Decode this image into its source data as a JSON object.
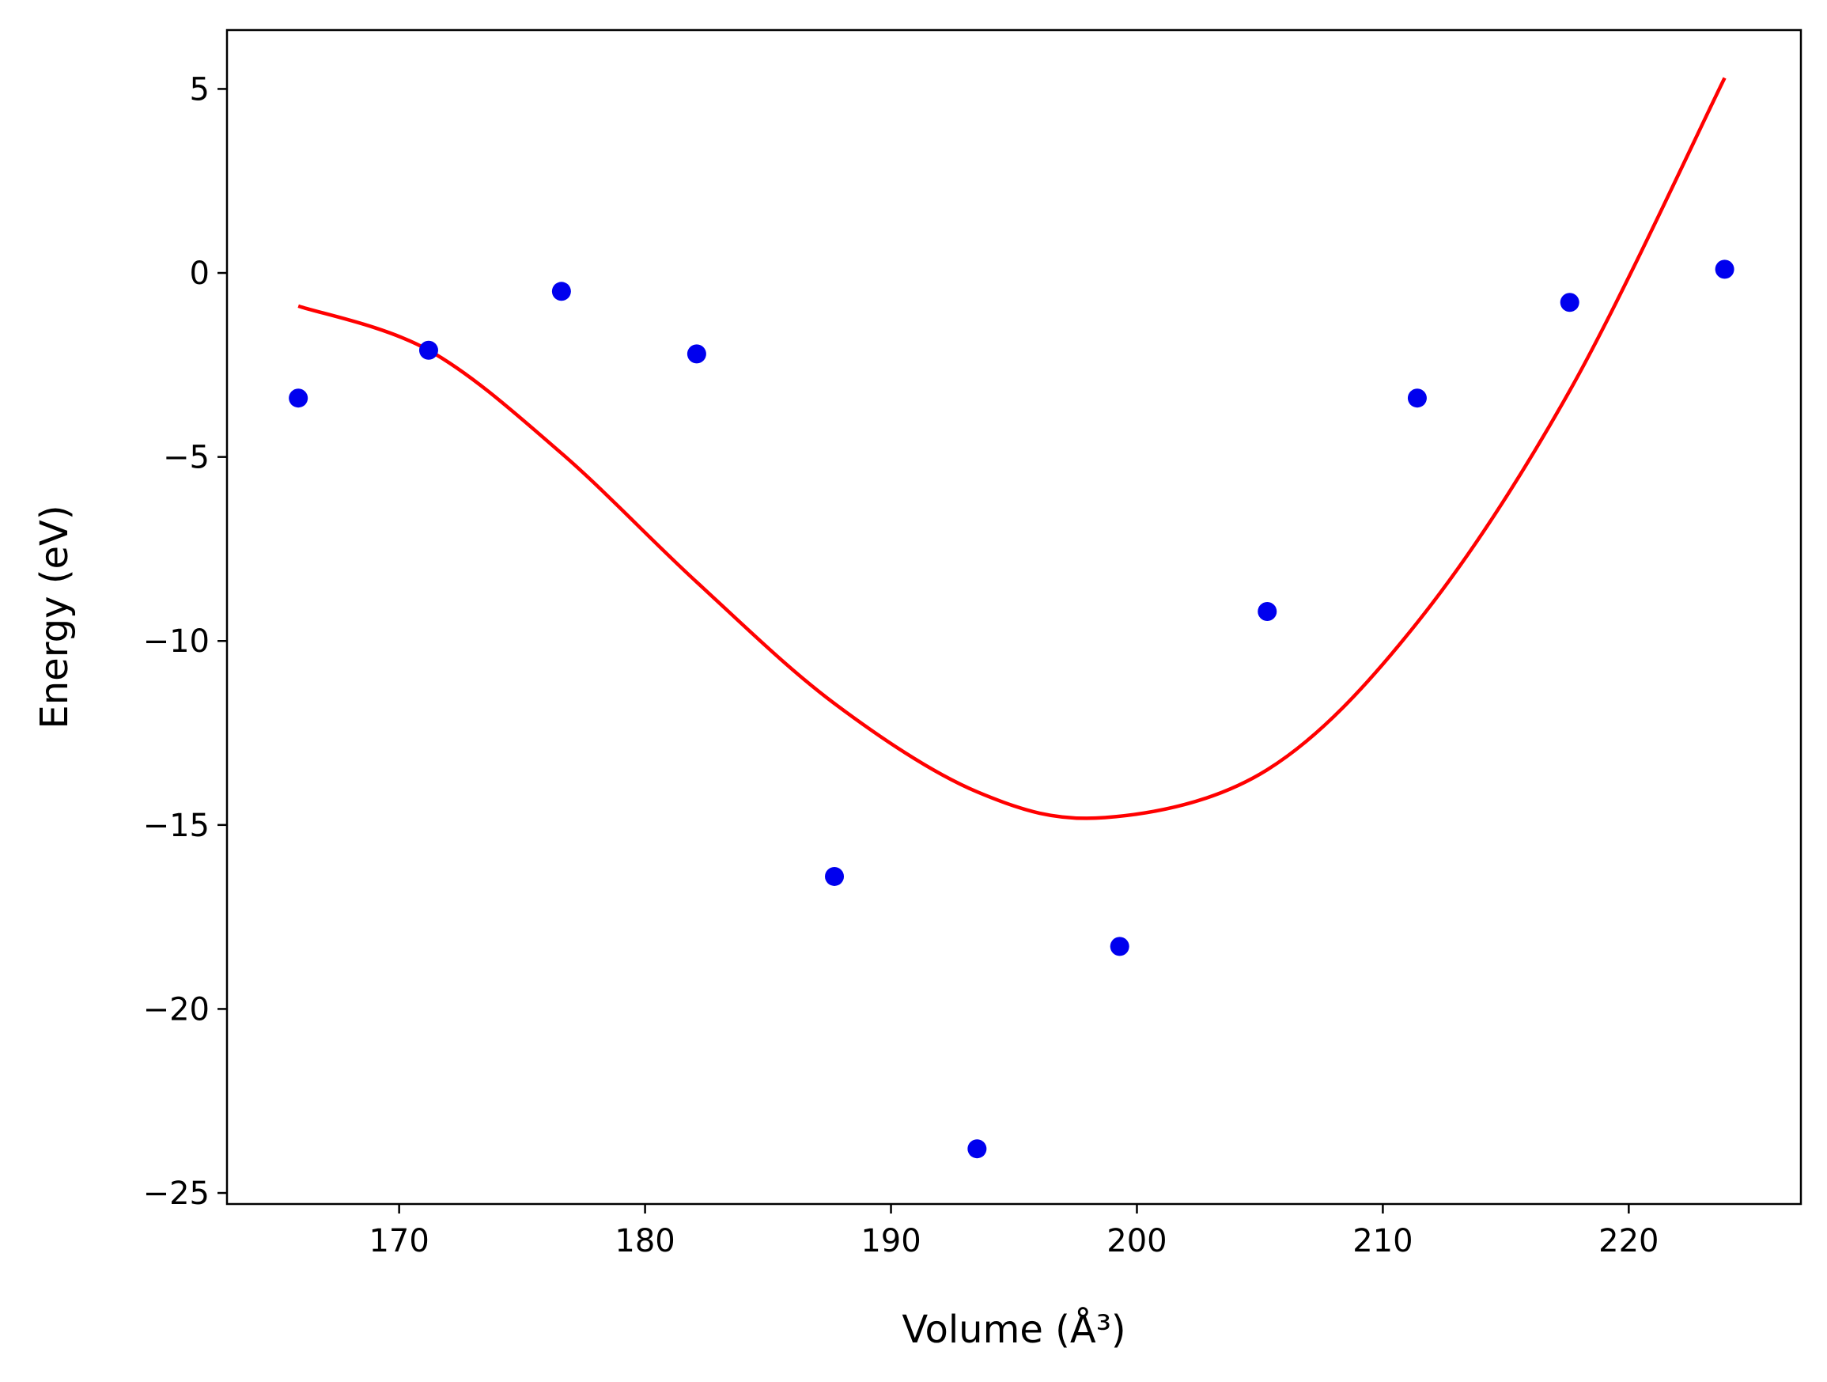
{
  "chart_data": {
    "type": "scatter",
    "title": "",
    "xlabel": "Volume (Å³)",
    "ylabel": "Energy (eV)",
    "xlim": [
      163,
      227
    ],
    "ylim": [
      -25.3,
      6.6
    ],
    "x_ticks": [
      170,
      180,
      190,
      200,
      210,
      220
    ],
    "y_ticks": [
      5,
      0,
      -5,
      -10,
      -15,
      -20,
      -25
    ],
    "x_tick_labels": [
      "170",
      "180",
      "190",
      "200",
      "210",
      "220"
    ],
    "y_tick_labels": [
      "5",
      "0",
      "−5",
      "−10",
      "−15",
      "−20",
      "−25"
    ],
    "grid": false,
    "series": [
      {
        "kind": "scatter",
        "color": "#0000ee",
        "points": [
          {
            "x": 165.9,
            "y": -3.4
          },
          {
            "x": 171.2,
            "y": -2.1
          },
          {
            "x": 176.6,
            "y": -0.5
          },
          {
            "x": 182.1,
            "y": -2.2
          },
          {
            "x": 187.7,
            "y": -16.4
          },
          {
            "x": 193.5,
            "y": -23.8
          },
          {
            "x": 199.3,
            "y": -18.3
          },
          {
            "x": 205.3,
            "y": -9.2
          },
          {
            "x": 211.4,
            "y": -3.4
          },
          {
            "x": 217.6,
            "y": -0.8
          },
          {
            "x": 223.9,
            "y": 0.1
          }
        ]
      },
      {
        "kind": "line",
        "color": "#ff0000",
        "points": [
          {
            "x": 165.9,
            "y": -0.9
          },
          {
            "x": 171.2,
            "y": -2.1
          },
          {
            "x": 176.6,
            "y": -4.9
          },
          {
            "x": 182.1,
            "y": -8.4
          },
          {
            "x": 187.7,
            "y": -11.7
          },
          {
            "x": 193.5,
            "y": -14.1
          },
          {
            "x": 198.7,
            "y": -14.8
          },
          {
            "x": 205.3,
            "y": -13.5
          },
          {
            "x": 211.4,
            "y": -9.5
          },
          {
            "x": 217.6,
            "y": -3.2
          },
          {
            "x": 223.9,
            "y": 5.3
          }
        ]
      }
    ]
  }
}
